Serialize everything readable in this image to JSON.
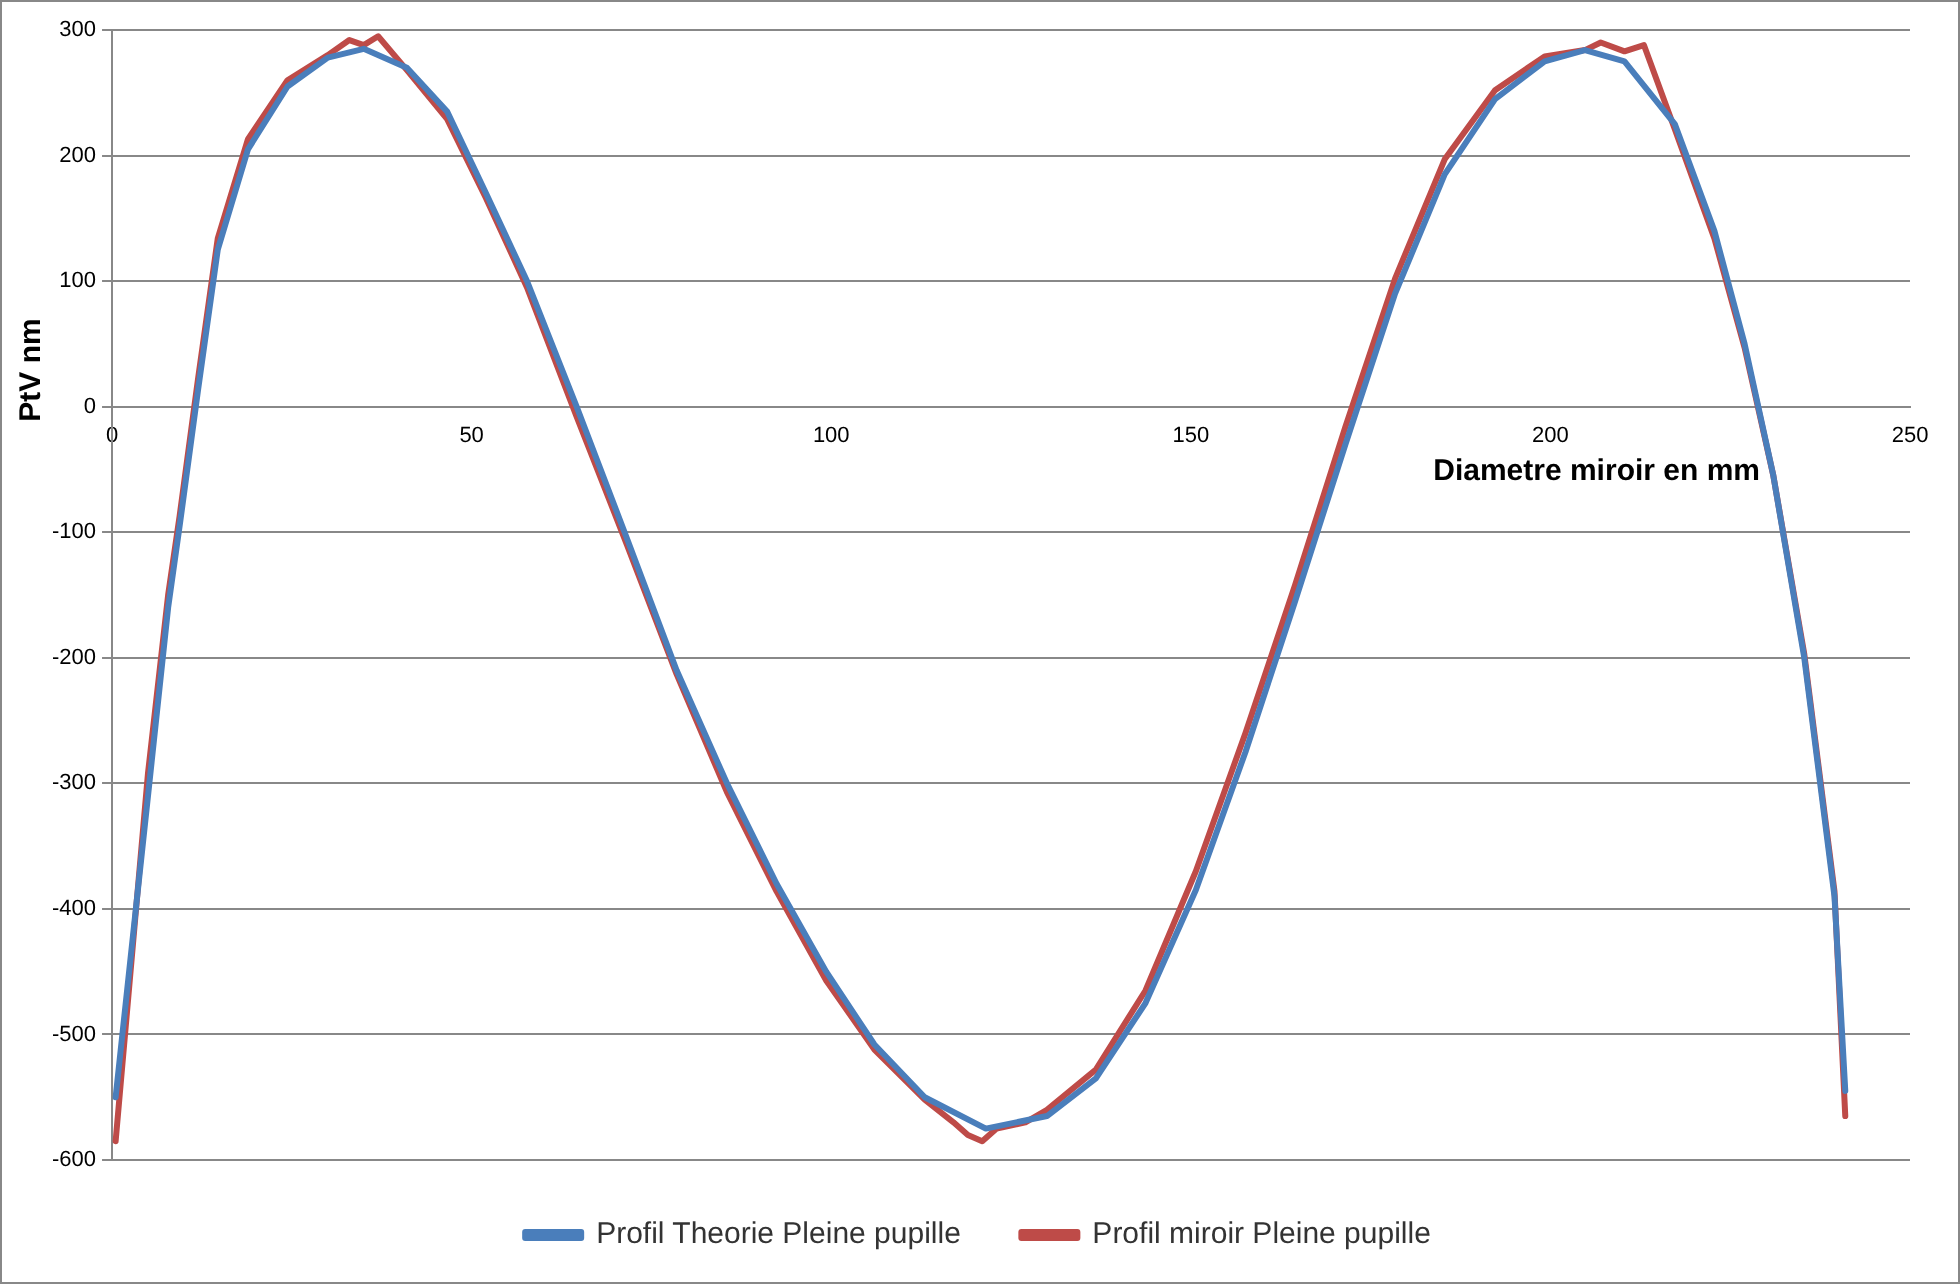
{
  "chart_data": {
    "type": "line",
    "xlabel": "Diametre miroir en mm",
    "ylabel": "PtV nm",
    "xlim": [
      0,
      250
    ],
    "xticks": [
      0,
      50,
      100,
      150,
      200,
      250
    ],
    "ylim": [
      -600,
      300
    ],
    "yticks": [
      -600,
      -500,
      -400,
      -300,
      -200,
      -100,
      0,
      100,
      200,
      300
    ],
    "grid": "y",
    "legend": "bottom",
    "marker": "none",
    "line_style": "solid",
    "series": [
      {
        "name": "Profil Theorie Pleine pupille",
        "color": "#4a7ebb",
        "x": [
          0.5,
          5,
          7.8,
          9.4,
          12,
          14.7,
          18.9,
          24.4,
          30,
          35,
          41,
          46.6,
          52,
          57.7,
          64.6,
          71.6,
          78.5,
          85.5,
          92.4,
          99.3,
          106,
          113,
          121.5,
          130,
          136.8,
          143.7,
          150.7,
          157.6,
          164.5,
          171.5,
          178.4,
          185.3,
          192.3,
          199.2,
          204.8,
          210.3,
          217.3,
          222.8,
          227,
          231,
          235.3,
          239.5,
          241
        ],
        "values": [
          -550,
          -310,
          -160,
          -95,
          15,
          125,
          205,
          255,
          278,
          285,
          270,
          235,
          170,
          100,
          0,
          -105,
          -210,
          -300,
          -380,
          -450,
          -508,
          -550,
          -575,
          -565,
          -535,
          -475,
          -385,
          -275,
          -155,
          -30,
          90,
          185,
          245,
          275,
          284,
          275,
          225,
          140,
          50,
          -55,
          -200,
          -390,
          -545
        ]
      },
      {
        "name": "Profil miroir Pleine pupille",
        "color": "#be4b48",
        "x": [
          0.5,
          5,
          7.8,
          9.4,
          12,
          14.7,
          18.9,
          24.4,
          30,
          33,
          35,
          37,
          41,
          46.6,
          52,
          57.7,
          64.6,
          71.6,
          78.5,
          85.5,
          92.4,
          99.3,
          106,
          113,
          117,
          119,
          121,
          123,
          127,
          130,
          136.8,
          143.7,
          150.7,
          157.6,
          164.5,
          171.5,
          178.4,
          185.3,
          192.3,
          199.2,
          204.8,
          207,
          210.3,
          213,
          217.3,
          222.8,
          227,
          231,
          235.3,
          239.5,
          241
        ],
        "values": [
          -585,
          -292,
          -150,
          -87,
          24,
          134,
          213,
          260,
          280,
          292,
          288,
          295,
          268,
          229,
          166,
          95,
          -8,
          -110,
          -213,
          -307,
          -386,
          -457,
          -512,
          -552,
          -570,
          -580,
          -585,
          -575,
          -570,
          -560,
          -528,
          -465,
          -370,
          -260,
          -142,
          -16,
          102,
          197,
          252,
          279,
          284,
          290,
          283,
          288,
          221,
          134,
          47,
          -55,
          -197,
          -386,
          -565
        ]
      }
    ]
  }
}
